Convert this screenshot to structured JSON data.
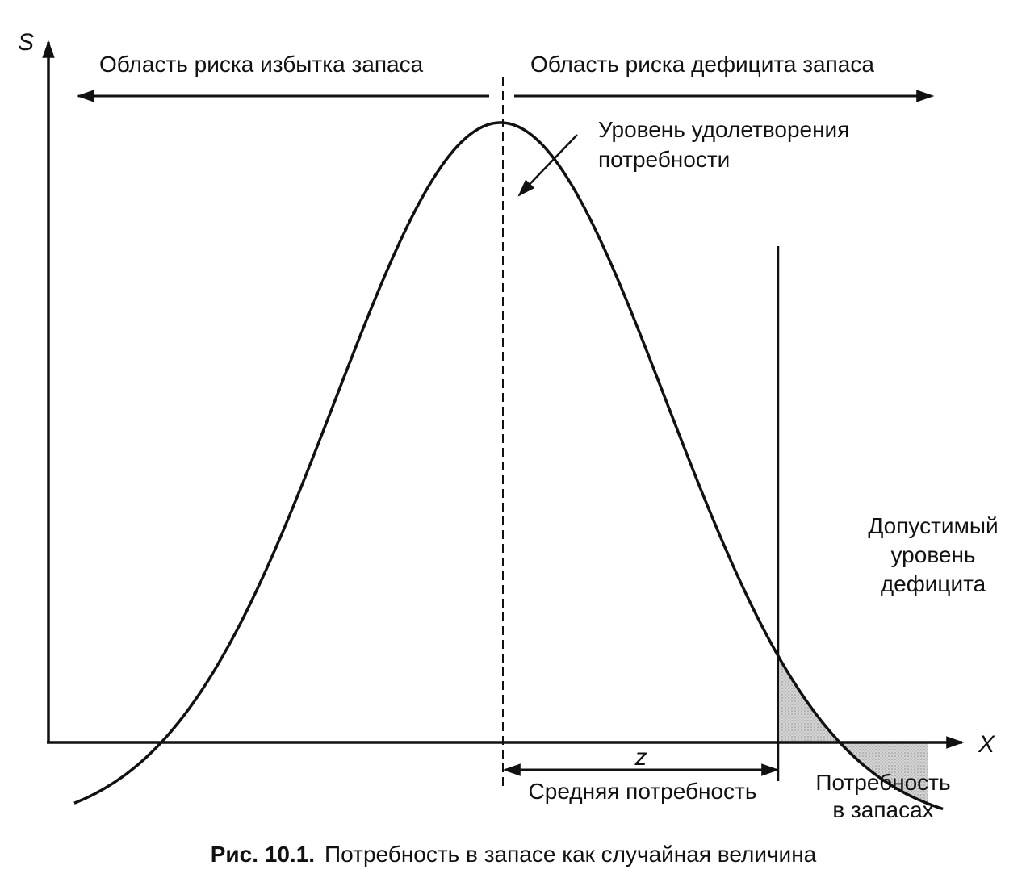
{
  "axes": {
    "y_label": "S",
    "x_label": "X"
  },
  "regions": {
    "left": "Область риска избытка запаса",
    "right": "Область риска дефицита запаса"
  },
  "annotations": {
    "satisfaction_line1": "Уровень удолетворения",
    "satisfaction_line2": "потребности",
    "deficit_line1": "Допустимый",
    "deficit_line2": "уровень",
    "deficit_line3": "дефицита",
    "z": "z",
    "mean": "Средняя потребность",
    "need_line1": "Потребность",
    "need_line2": "в запасах"
  },
  "caption": {
    "number": "Рис. 10.1.",
    "text": "Потребность в запасе как случайная величина"
  },
  "colors": {
    "line": "#111111",
    "shade": "#c8c8c8"
  }
}
